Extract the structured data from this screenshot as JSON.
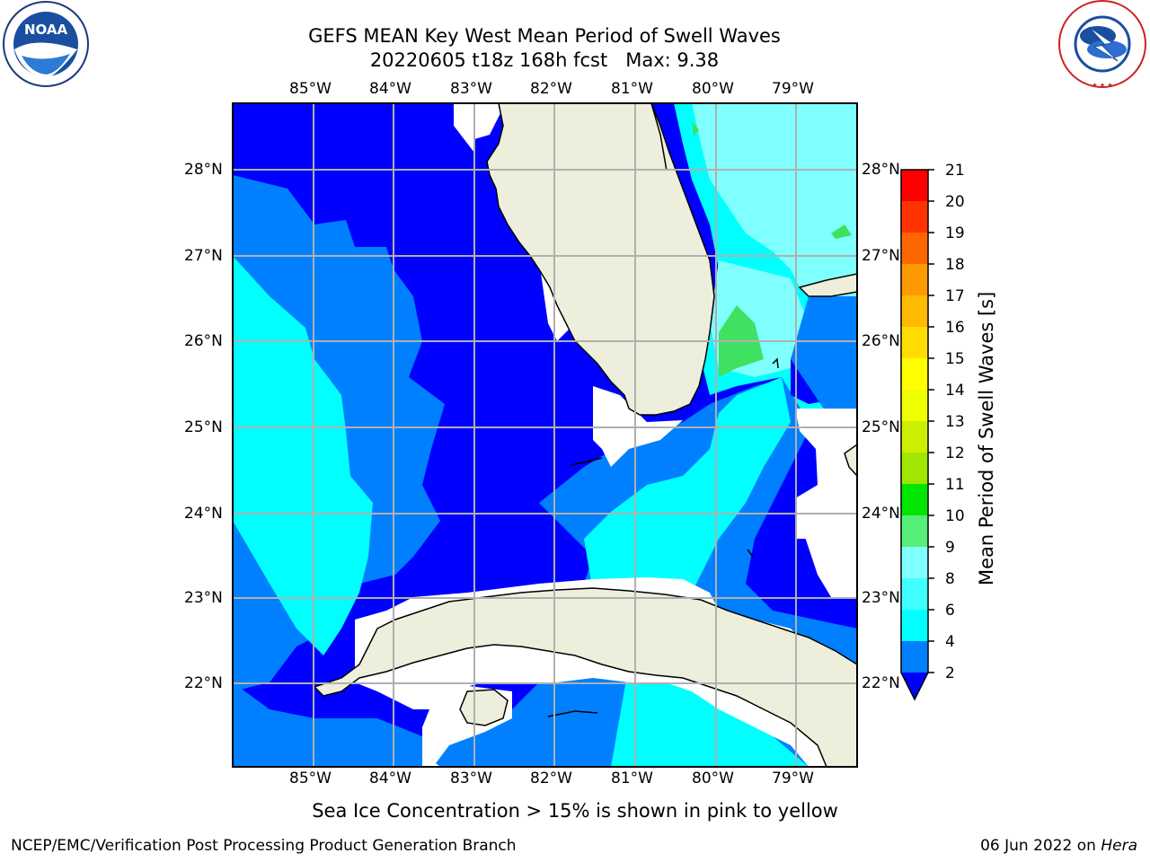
{
  "header": {
    "title": "GEFS MEAN Key West Mean Period of Swell Waves",
    "subtitle": "20220605 t18z 168h fcst   Max: 9.38"
  },
  "logos": {
    "left": {
      "text": "NOAA",
      "ring_text": "NATIONAL OCEANIC AND ATMOSPHERIC ADMINISTRATION · U.S. DEPARTMENT OF COMMERCE"
    },
    "right": {
      "ring_text": "NATIONAL WEATHER SERVICE"
    }
  },
  "map": {
    "lon_labels": [
      "85°W",
      "84°W",
      "83°W",
      "82°W",
      "81°W",
      "80°W",
      "79°W"
    ],
    "lat_labels": [
      "28°N",
      "27°N",
      "26°N",
      "25°N",
      "24°N",
      "23°N",
      "22°N"
    ],
    "colors": {
      "sea_2_4": "#0000ff",
      "sea_4_6": "#0080ff",
      "sea_6_8": "#00ffff",
      "sea_8_9": "#80ffff",
      "sea_9_10": "#40e060",
      "land": "#eeeedd",
      "grid": "#b0b0b0"
    }
  },
  "colorbar": {
    "title": "Mean Period of Swell Waves [s]",
    "ticks": [
      "2",
      "4",
      "6",
      "8",
      "9",
      "10",
      "11",
      "12",
      "13",
      "14",
      "15",
      "16",
      "17",
      "18",
      "19",
      "20",
      "21"
    ],
    "colors": [
      "#0000ff",
      "#0080ff",
      "#00ffff",
      "#80ffff",
      "#55ee77",
      "#00e600",
      "#40dd00",
      "#a0e600",
      "#ccee00",
      "#eeff00",
      "#ffff00",
      "#ffdd00",
      "#ffbb00",
      "#ff9900",
      "#ff6600",
      "#ff3300",
      "#ff0000"
    ]
  },
  "note": "Sea Ice Concentration > 15% is shown in pink to yellow",
  "footer": {
    "left": "NCEP/EMC/Verification Post Processing Product Generation Branch",
    "date": "06 Jun 2022 on",
    "machine": "Hera"
  }
}
